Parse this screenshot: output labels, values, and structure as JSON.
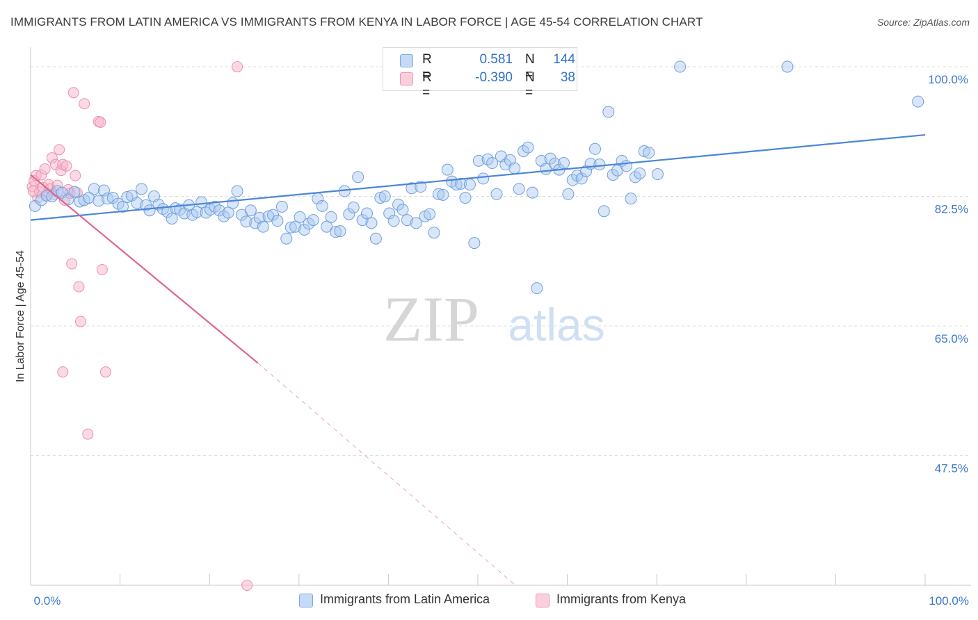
{
  "header": {
    "title": "IMMIGRANTS FROM LATIN AMERICA VS IMMIGRANTS FROM KENYA IN LABOR FORCE | AGE 45-54 CORRELATION CHART",
    "source": "Source: ZipAtlas.com"
  },
  "watermark": {
    "zip": "ZIP",
    "atlas": "atlas"
  },
  "legend_top": [
    {
      "r_label": "R =",
      "r_value": "0.581",
      "n_label": "N =",
      "n_value": "144",
      "color": "#a9c8f0"
    },
    {
      "r_label": "R =",
      "r_value": "-0.390",
      "n_label": "N =",
      "n_value": "38",
      "color": "#f7b6c9"
    }
  ],
  "legend_bottom": [
    {
      "label": "Immigrants from Latin America",
      "color": "#a9c8f0"
    },
    {
      "label": "Immigrants from Kenya",
      "color": "#f7b6c9"
    }
  ],
  "chart_data": {
    "type": "scatter",
    "title": "IMMIGRANTS FROM LATIN AMERICA VS IMMIGRANTS FROM KENYA IN LABOR FORCE | AGE 45-54 CORRELATION CHART",
    "xlabel": "",
    "ylabel": "In Labor Force | Age 45-54",
    "xlim": [
      0,
      100
    ],
    "ylim": [
      30.0,
      101.5
    ],
    "x_tick_labels": [
      "0.0%",
      "100.0%"
    ],
    "y_ticks": [
      100.0,
      82.5,
      65.0,
      47.5
    ],
    "y_tick_labels": [
      "100.0%",
      "82.5%",
      "65.0%",
      "47.5%"
    ],
    "grid": true,
    "colors": {
      "latin_america": "#4a86d8",
      "latin_america_fill": "#a9c8f0",
      "kenya": "#e0648f",
      "kenya_fill": "#f7b6c9",
      "axis_label": "#3b78d0"
    },
    "series": [
      {
        "name": "Immigrants from Latin America",
        "trend": {
          "x": [
            0,
            100
          ],
          "y": [
            79.3,
            90.8
          ]
        },
        "points": [
          [
            0.5,
            81.2
          ],
          [
            1.2,
            82.0
          ],
          [
            1.8,
            82.6
          ],
          [
            2.4,
            82.5
          ],
          [
            3.0,
            83.2
          ],
          [
            3.5,
            83.0
          ],
          [
            4.2,
            82.1
          ],
          [
            4.9,
            83.1
          ],
          [
            5.5,
            81.8
          ],
          [
            6.0,
            82.0
          ],
          [
            6.5,
            82.3
          ],
          [
            7.1,
            83.5
          ],
          [
            7.6,
            81.9
          ],
          [
            8.2,
            83.3
          ],
          [
            8.6,
            82.2
          ],
          [
            9.2,
            82.3
          ],
          [
            9.8,
            81.5
          ],
          [
            10.3,
            81.1
          ],
          [
            10.8,
            82.4
          ],
          [
            11.3,
            82.6
          ],
          [
            11.9,
            81.6
          ],
          [
            12.4,
            83.5
          ],
          [
            12.9,
            81.3
          ],
          [
            13.3,
            80.6
          ],
          [
            13.8,
            82.5
          ],
          [
            14.3,
            81.4
          ],
          [
            14.8,
            80.8
          ],
          [
            15.3,
            80.4
          ],
          [
            15.8,
            79.5
          ],
          [
            16.2,
            80.9
          ],
          [
            16.7,
            80.7
          ],
          [
            17.2,
            80.2
          ],
          [
            17.7,
            81.3
          ],
          [
            18.1,
            80.0
          ],
          [
            18.6,
            80.4
          ],
          [
            19.1,
            81.7
          ],
          [
            19.6,
            80.3
          ],
          [
            20.1,
            80.7
          ],
          [
            20.6,
            81.1
          ],
          [
            21.1,
            80.6
          ],
          [
            21.6,
            79.8
          ],
          [
            22.1,
            80.3
          ],
          [
            22.6,
            81.6
          ],
          [
            23.1,
            83.2
          ],
          [
            23.6,
            80.0
          ],
          [
            24.1,
            79.1
          ],
          [
            24.6,
            80.6
          ],
          [
            25.1,
            78.9
          ],
          [
            25.6,
            79.6
          ],
          [
            26.0,
            78.4
          ],
          [
            26.6,
            79.8
          ],
          [
            27.1,
            80.0
          ],
          [
            27.6,
            79.2
          ],
          [
            28.1,
            81.1
          ],
          [
            28.6,
            76.8
          ],
          [
            29.1,
            78.3
          ],
          [
            29.6,
            78.4
          ],
          [
            30.1,
            79.7
          ],
          [
            30.6,
            78.0
          ],
          [
            31.1,
            78.8
          ],
          [
            31.6,
            79.3
          ],
          [
            32.1,
            82.2
          ],
          [
            32.6,
            81.2
          ],
          [
            33.1,
            78.4
          ],
          [
            33.6,
            79.7
          ],
          [
            34.1,
            77.7
          ],
          [
            34.6,
            77.8
          ],
          [
            35.1,
            83.2
          ],
          [
            35.6,
            80.1
          ],
          [
            36.1,
            81.0
          ],
          [
            36.6,
            85.1
          ],
          [
            37.1,
            79.3
          ],
          [
            37.6,
            80.2
          ],
          [
            38.1,
            78.9
          ],
          [
            38.6,
            76.8
          ],
          [
            39.1,
            82.3
          ],
          [
            39.6,
            82.5
          ],
          [
            40.1,
            80.2
          ],
          [
            40.6,
            79.2
          ],
          [
            41.1,
            81.4
          ],
          [
            41.6,
            80.7
          ],
          [
            42.1,
            79.3
          ],
          [
            42.6,
            83.6
          ],
          [
            43.1,
            78.9
          ],
          [
            43.6,
            83.8
          ],
          [
            44.1,
            79.8
          ],
          [
            44.6,
            80.1
          ],
          [
            45.1,
            77.6
          ],
          [
            45.6,
            82.8
          ],
          [
            46.1,
            82.7
          ],
          [
            46.6,
            86.1
          ],
          [
            47.1,
            84.5
          ],
          [
            47.6,
            84.1
          ],
          [
            48.1,
            84.2
          ],
          [
            48.6,
            82.3
          ],
          [
            49.1,
            84.1
          ],
          [
            49.6,
            76.2
          ],
          [
            50.1,
            87.3
          ],
          [
            50.6,
            84.9
          ],
          [
            51.1,
            87.5
          ],
          [
            51.6,
            87.0
          ],
          [
            52.1,
            82.8
          ],
          [
            52.6,
            87.9
          ],
          [
            53.1,
            86.8
          ],
          [
            53.6,
            87.4
          ],
          [
            54.1,
            86.3
          ],
          [
            54.6,
            83.5
          ],
          [
            55.1,
            88.6
          ],
          [
            55.6,
            89.1
          ],
          [
            56.1,
            83.0
          ],
          [
            56.6,
            70.1
          ],
          [
            57.1,
            87.3
          ],
          [
            57.6,
            86.2
          ],
          [
            58.1,
            87.6
          ],
          [
            58.6,
            86.9
          ],
          [
            59.1,
            86.1
          ],
          [
            59.6,
            87.0
          ],
          [
            60.1,
            82.8
          ],
          [
            60.6,
            84.7
          ],
          [
            61.1,
            85.3
          ],
          [
            61.6,
            84.9
          ],
          [
            62.1,
            85.9
          ],
          [
            62.6,
            86.9
          ],
          [
            63.1,
            88.9
          ],
          [
            63.6,
            86.8
          ],
          [
            64.1,
            80.5
          ],
          [
            64.6,
            93.9
          ],
          [
            65.1,
            85.4
          ],
          [
            65.6,
            86.0
          ],
          [
            66.1,
            87.3
          ],
          [
            66.6,
            86.6
          ],
          [
            67.1,
            82.2
          ],
          [
            67.6,
            85.1
          ],
          [
            68.1,
            85.6
          ],
          [
            68.6,
            88.6
          ],
          [
            69.1,
            88.4
          ],
          [
            70.1,
            85.5
          ],
          [
            72.6,
            100.0
          ],
          [
            84.6,
            100.0
          ],
          [
            99.2,
            95.3
          ]
        ]
      },
      {
        "name": "Immigrants from Kenya",
        "trend": {
          "x": [
            0,
            25.4
          ],
          "y": [
            85.4,
            60.0
          ],
          "dashed_to": {
            "x": 54.2,
            "y": 30.0
          }
        },
        "points": [
          [
            0.2,
            83.8
          ],
          [
            0.4,
            84.6
          ],
          [
            0.6,
            85.3
          ],
          [
            0.8,
            82.3
          ],
          [
            1.0,
            83.1
          ],
          [
            1.2,
            85.4
          ],
          [
            1.4,
            83.7
          ],
          [
            1.6,
            86.2
          ],
          [
            1.8,
            82.6
          ],
          [
            2.0,
            84.1
          ],
          [
            2.2,
            83.5
          ],
          [
            2.4,
            87.7
          ],
          [
            2.6,
            82.8
          ],
          [
            2.8,
            86.8
          ],
          [
            3.0,
            84.0
          ],
          [
            3.2,
            88.8
          ],
          [
            3.4,
            86.0
          ],
          [
            3.6,
            86.8
          ],
          [
            3.8,
            82.0
          ],
          [
            4.0,
            86.6
          ],
          [
            4.2,
            83.4
          ],
          [
            4.4,
            82.9
          ],
          [
            4.6,
            73.4
          ],
          [
            4.8,
            96.5
          ],
          [
            5.0,
            85.3
          ],
          [
            5.2,
            83.0
          ],
          [
            5.4,
            70.3
          ],
          [
            5.6,
            65.6
          ],
          [
            3.6,
            58.8
          ],
          [
            6.0,
            95.0
          ],
          [
            7.6,
            92.6
          ],
          [
            7.8,
            92.5
          ],
          [
            8.0,
            72.6
          ],
          [
            8.4,
            58.8
          ],
          [
            6.4,
            50.4
          ],
          [
            23.1,
            100.0
          ],
          [
            24.2,
            30.0
          ],
          [
            0.3,
            83.2
          ]
        ]
      }
    ]
  }
}
